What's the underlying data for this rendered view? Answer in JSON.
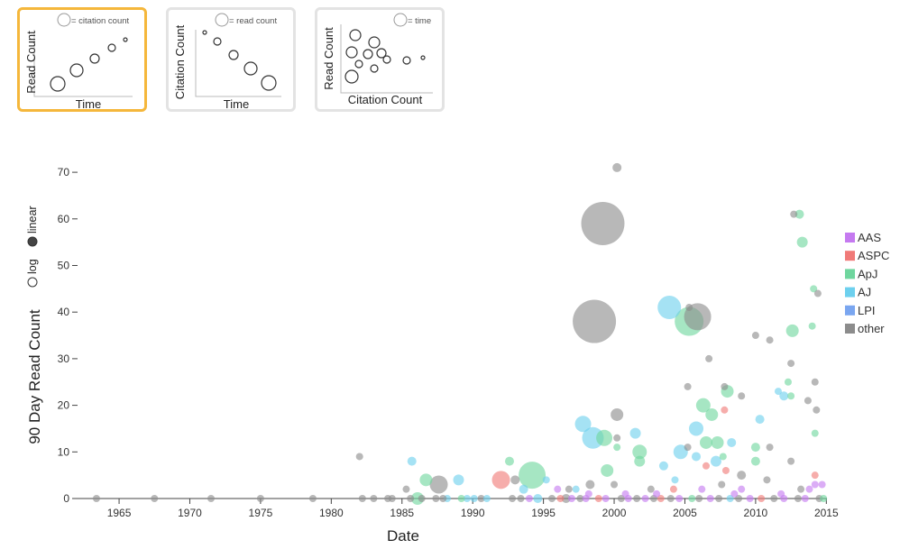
{
  "thumbnails": [
    {
      "xlabel": "Time",
      "ylabel": "Read Count",
      "size_legend": "= citation count",
      "selected": true
    },
    {
      "xlabel": "Time",
      "ylabel": "Citation Count",
      "size_legend": "= read count",
      "selected": false
    },
    {
      "xlabel": "Citation Count",
      "ylabel": "Read Count",
      "size_legend": "= time",
      "selected": false
    }
  ],
  "scale_toggle": {
    "log_label": "log",
    "linear_label": "linear",
    "selected": "linear"
  },
  "legend": [
    {
      "label": "AAS",
      "color": "#c57af0"
    },
    {
      "label": "ASPC",
      "color": "#f07a78"
    },
    {
      "label": "ApJ",
      "color": "#6fd69e"
    },
    {
      "label": "AJ",
      "color": "#6dd0ee"
    },
    {
      "label": "LPI",
      "color": "#7aa6f0"
    },
    {
      "label": "other",
      "color": "#8c8c8c"
    }
  ],
  "chart_data": {
    "type": "scatter",
    "title": "",
    "xlabel": "Date",
    "ylabel": "90 Day Read Count",
    "xlim": [
      1962,
      2016
    ],
    "ylim": [
      0,
      72
    ],
    "xticks": [
      1965,
      1970,
      1975,
      1980,
      1985,
      1990,
      1995,
      2000,
      2005,
      2010,
      2015
    ],
    "yticks": [
      0,
      10,
      20,
      30,
      40,
      50,
      60,
      70
    ],
    "size_encoding": "citation count",
    "points": [
      {
        "x": 1963.4,
        "y": 0,
        "r": 4,
        "s": "other"
      },
      {
        "x": 1967.5,
        "y": 0,
        "r": 4,
        "s": "other"
      },
      {
        "x": 1971.5,
        "y": 0,
        "r": 4,
        "s": "other"
      },
      {
        "x": 1975,
        "y": 0,
        "r": 4,
        "s": "other"
      },
      {
        "x": 1978.7,
        "y": 0,
        "r": 4,
        "s": "other"
      },
      {
        "x": 1982,
        "y": 9,
        "r": 4,
        "s": "other"
      },
      {
        "x": 1982.2,
        "y": 0,
        "r": 4,
        "s": "other"
      },
      {
        "x": 1983,
        "y": 0,
        "r": 4,
        "s": "other"
      },
      {
        "x": 1984.3,
        "y": 0,
        "r": 4,
        "s": "other"
      },
      {
        "x": 1985.3,
        "y": 2,
        "r": 4,
        "s": "other"
      },
      {
        "x": 1985.6,
        "y": 0,
        "r": 4,
        "s": "other"
      },
      {
        "x": 1985.7,
        "y": 8,
        "r": 5,
        "s": "AJ"
      },
      {
        "x": 1986.1,
        "y": 0,
        "r": 7,
        "s": "ApJ"
      },
      {
        "x": 1986.7,
        "y": 4,
        "r": 7,
        "s": "ApJ"
      },
      {
        "x": 1987.4,
        "y": 0,
        "r": 4,
        "s": "other"
      },
      {
        "x": 1987.6,
        "y": 3,
        "r": 10,
        "s": "other"
      },
      {
        "x": 1988.2,
        "y": 0,
        "r": 4,
        "s": "AJ"
      },
      {
        "x": 1989,
        "y": 4,
        "r": 6,
        "s": "AJ"
      },
      {
        "x": 1989.6,
        "y": 0,
        "r": 4,
        "s": "AJ"
      },
      {
        "x": 1990.6,
        "y": 0,
        "r": 4,
        "s": "other"
      },
      {
        "x": 1992,
        "y": 4,
        "r": 10,
        "s": "ASPC"
      },
      {
        "x": 1992.6,
        "y": 8,
        "r": 5,
        "s": "ApJ"
      },
      {
        "x": 1993,
        "y": 4,
        "r": 5,
        "s": "other"
      },
      {
        "x": 1993.6,
        "y": 2,
        "r": 5,
        "s": "AJ"
      },
      {
        "x": 1994.2,
        "y": 5,
        "r": 15,
        "s": "ApJ"
      },
      {
        "x": 1994.6,
        "y": 0,
        "r": 5,
        "s": "AJ"
      },
      {
        "x": 1995.2,
        "y": 4,
        "r": 4,
        "s": "AJ"
      },
      {
        "x": 1996,
        "y": 2,
        "r": 4,
        "s": "AAS"
      },
      {
        "x": 1996.6,
        "y": 0,
        "r": 5,
        "s": "other"
      },
      {
        "x": 1997.3,
        "y": 2,
        "r": 4,
        "s": "AJ"
      },
      {
        "x": 1997.8,
        "y": 16,
        "r": 9,
        "s": "AJ"
      },
      {
        "x": 1998.3,
        "y": 3,
        "r": 5,
        "s": "other"
      },
      {
        "x": 1998.6,
        "y": 38,
        "r": 24,
        "s": "other"
      },
      {
        "x": 1998.5,
        "y": 13,
        "r": 12,
        "s": "AJ"
      },
      {
        "x": 1999.3,
        "y": 13,
        "r": 9,
        "s": "ApJ"
      },
      {
        "x": 1999.2,
        "y": 59,
        "r": 24,
        "s": "other"
      },
      {
        "x": 1999.5,
        "y": 6,
        "r": 7,
        "s": "ApJ"
      },
      {
        "x": 2000,
        "y": 3,
        "r": 4,
        "s": "other"
      },
      {
        "x": 2000.2,
        "y": 71,
        "r": 5,
        "s": "other"
      },
      {
        "x": 2000.2,
        "y": 18,
        "r": 7,
        "s": "other"
      },
      {
        "x": 2000.2,
        "y": 13,
        "r": 4,
        "s": "other"
      },
      {
        "x": 2000.2,
        "y": 11,
        "r": 4,
        "s": "ApJ"
      },
      {
        "x": 2001.5,
        "y": 14,
        "r": 6,
        "s": "AJ"
      },
      {
        "x": 2001.8,
        "y": 10,
        "r": 8,
        "s": "ApJ"
      },
      {
        "x": 2001.8,
        "y": 8,
        "r": 6,
        "s": "ApJ"
      },
      {
        "x": 2003.5,
        "y": 7,
        "r": 5,
        "s": "AJ"
      },
      {
        "x": 2003.9,
        "y": 41,
        "r": 13,
        "s": "AJ"
      },
      {
        "x": 2004.3,
        "y": 4,
        "r": 4,
        "s": "AJ"
      },
      {
        "x": 2004.7,
        "y": 10,
        "r": 8,
        "s": "AJ"
      },
      {
        "x": 2005.2,
        "y": 11,
        "r": 4,
        "s": "other"
      },
      {
        "x": 2005.2,
        "y": 24,
        "r": 4,
        "s": "other"
      },
      {
        "x": 2005.3,
        "y": 38,
        "r": 16,
        "s": "ApJ"
      },
      {
        "x": 2005.3,
        "y": 41,
        "r": 4,
        "s": "other"
      },
      {
        "x": 2005.9,
        "y": 39,
        "r": 15,
        "s": "other"
      },
      {
        "x": 2005.8,
        "y": 15,
        "r": 8,
        "s": "AJ"
      },
      {
        "x": 2005.8,
        "y": 9,
        "r": 5,
        "s": "AJ"
      },
      {
        "x": 2006.3,
        "y": 20,
        "r": 8,
        "s": "ApJ"
      },
      {
        "x": 2006.5,
        "y": 12,
        "r": 7,
        "s": "ApJ"
      },
      {
        "x": 2006.5,
        "y": 7,
        "r": 4,
        "s": "ASPC"
      },
      {
        "x": 2006.7,
        "y": 30,
        "r": 4,
        "s": "other"
      },
      {
        "x": 2006.9,
        "y": 18,
        "r": 7,
        "s": "ApJ"
      },
      {
        "x": 2007.2,
        "y": 8,
        "r": 6,
        "s": "AJ"
      },
      {
        "x": 2007.3,
        "y": 12,
        "r": 7,
        "s": "ApJ"
      },
      {
        "x": 2007.7,
        "y": 9,
        "r": 4,
        "s": "ApJ"
      },
      {
        "x": 2007.8,
        "y": 24,
        "r": 4,
        "s": "other"
      },
      {
        "x": 2007.8,
        "y": 19,
        "r": 4,
        "s": "ASPC"
      },
      {
        "x": 2008,
        "y": 23,
        "r": 7,
        "s": "ApJ"
      },
      {
        "x": 2007.9,
        "y": 6,
        "r": 4,
        "s": "ASPC"
      },
      {
        "x": 2008.3,
        "y": 12,
        "r": 5,
        "s": "AJ"
      },
      {
        "x": 2009,
        "y": 22,
        "r": 4,
        "s": "other"
      },
      {
        "x": 2009,
        "y": 5,
        "r": 5,
        "s": "other"
      },
      {
        "x": 2009,
        "y": 2,
        "r": 4,
        "s": "AAS"
      },
      {
        "x": 2010,
        "y": 35,
        "r": 4,
        "s": "other"
      },
      {
        "x": 2010,
        "y": 11,
        "r": 5,
        "s": "ApJ"
      },
      {
        "x": 2010,
        "y": 8,
        "r": 5,
        "s": "ApJ"
      },
      {
        "x": 2010.3,
        "y": 17,
        "r": 5,
        "s": "AJ"
      },
      {
        "x": 2010.8,
        "y": 4,
        "r": 4,
        "s": "other"
      },
      {
        "x": 2011,
        "y": 11,
        "r": 4,
        "s": "other"
      },
      {
        "x": 2011,
        "y": 34,
        "r": 4,
        "s": "other"
      },
      {
        "x": 2011.6,
        "y": 23,
        "r": 4,
        "s": "AJ"
      },
      {
        "x": 2012,
        "y": 22,
        "r": 5,
        "s": "AJ"
      },
      {
        "x": 2012.3,
        "y": 25,
        "r": 4,
        "s": "ApJ"
      },
      {
        "x": 2012.5,
        "y": 29,
        "r": 4,
        "s": "other"
      },
      {
        "x": 2012.5,
        "y": 22,
        "r": 4,
        "s": "ApJ"
      },
      {
        "x": 2012.5,
        "y": 8,
        "r": 4,
        "s": "other"
      },
      {
        "x": 2012.6,
        "y": 36,
        "r": 7,
        "s": "ApJ"
      },
      {
        "x": 2012.7,
        "y": 61,
        "r": 4,
        "s": "other"
      },
      {
        "x": 2013.1,
        "y": 61,
        "r": 5,
        "s": "ApJ"
      },
      {
        "x": 2013.3,
        "y": 55,
        "r": 6,
        "s": "ApJ"
      },
      {
        "x": 2013.7,
        "y": 21,
        "r": 4,
        "s": "other"
      },
      {
        "x": 2014.1,
        "y": 45,
        "r": 4,
        "s": "ApJ"
      },
      {
        "x": 2014,
        "y": 37,
        "r": 4,
        "s": "ApJ"
      },
      {
        "x": 2014.2,
        "y": 25,
        "r": 4,
        "s": "other"
      },
      {
        "x": 2014.4,
        "y": 44,
        "r": 4,
        "s": "other"
      },
      {
        "x": 2014.3,
        "y": 19,
        "r": 4,
        "s": "other"
      },
      {
        "x": 2014.2,
        "y": 14,
        "r": 4,
        "s": "ApJ"
      },
      {
        "x": 2014.2,
        "y": 5,
        "r": 4,
        "s": "ASPC"
      },
      {
        "x": 2014.2,
        "y": 3,
        "r": 4,
        "s": "AAS"
      },
      {
        "x": 2013.8,
        "y": 2,
        "r": 4,
        "s": "AAS"
      },
      {
        "x": 2014.7,
        "y": 3,
        "r": 4,
        "s": "AAS"
      },
      {
        "x": 1984,
        "y": 0,
        "r": 4,
        "s": "other"
      },
      {
        "x": 1986.4,
        "y": 0,
        "r": 4,
        "s": "other"
      },
      {
        "x": 1987.9,
        "y": 0,
        "r": 4,
        "s": "other"
      },
      {
        "x": 1989.2,
        "y": 0,
        "r": 4,
        "s": "ApJ"
      },
      {
        "x": 1990.1,
        "y": 0,
        "r": 4,
        "s": "AJ"
      },
      {
        "x": 1991,
        "y": 0,
        "r": 4,
        "s": "AJ"
      },
      {
        "x": 1992.8,
        "y": 0,
        "r": 4,
        "s": "other"
      },
      {
        "x": 1993.4,
        "y": 0,
        "r": 4,
        "s": "other"
      },
      {
        "x": 1994,
        "y": 0,
        "r": 4,
        "s": "AAS"
      },
      {
        "x": 1995.6,
        "y": 0,
        "r": 4,
        "s": "other"
      },
      {
        "x": 1996.2,
        "y": 0,
        "r": 4,
        "s": "ASPC"
      },
      {
        "x": 1997,
        "y": 0,
        "r": 4,
        "s": "AAS"
      },
      {
        "x": 1997.6,
        "y": 0,
        "r": 4,
        "s": "other"
      },
      {
        "x": 1998,
        "y": 0,
        "r": 4,
        "s": "AAS"
      },
      {
        "x": 1998.9,
        "y": 0,
        "r": 4,
        "s": "ASPC"
      },
      {
        "x": 1999.4,
        "y": 0,
        "r": 4,
        "s": "AAS"
      },
      {
        "x": 2000.5,
        "y": 0,
        "r": 4,
        "s": "other"
      },
      {
        "x": 2001,
        "y": 0,
        "r": 4,
        "s": "AAS"
      },
      {
        "x": 2001.6,
        "y": 0,
        "r": 4,
        "s": "other"
      },
      {
        "x": 2002.2,
        "y": 0,
        "r": 4,
        "s": "AAS"
      },
      {
        "x": 2002.8,
        "y": 0,
        "r": 4,
        "s": "other"
      },
      {
        "x": 2003.3,
        "y": 0,
        "r": 4,
        "s": "ASPC"
      },
      {
        "x": 2004,
        "y": 0,
        "r": 4,
        "s": "other"
      },
      {
        "x": 2004.6,
        "y": 0,
        "r": 4,
        "s": "AAS"
      },
      {
        "x": 2005.5,
        "y": 0,
        "r": 4,
        "s": "ApJ"
      },
      {
        "x": 2006,
        "y": 0,
        "r": 4,
        "s": "other"
      },
      {
        "x": 2006.8,
        "y": 0,
        "r": 4,
        "s": "AAS"
      },
      {
        "x": 2007.4,
        "y": 0,
        "r": 4,
        "s": "other"
      },
      {
        "x": 2008.2,
        "y": 0,
        "r": 4,
        "s": "AJ"
      },
      {
        "x": 2008.8,
        "y": 0,
        "r": 4,
        "s": "other"
      },
      {
        "x": 2009.6,
        "y": 0,
        "r": 4,
        "s": "AAS"
      },
      {
        "x": 2010.4,
        "y": 0,
        "r": 4,
        "s": "ASPC"
      },
      {
        "x": 2011.3,
        "y": 0,
        "r": 4,
        "s": "other"
      },
      {
        "x": 2012,
        "y": 0,
        "r": 4,
        "s": "AAS"
      },
      {
        "x": 2013,
        "y": 0,
        "r": 4,
        "s": "other"
      },
      {
        "x": 2013.5,
        "y": 0,
        "r": 4,
        "s": "AAS"
      },
      {
        "x": 2014.5,
        "y": 0,
        "r": 4,
        "s": "other"
      },
      {
        "x": 1996.8,
        "y": 2,
        "r": 4,
        "s": "other"
      },
      {
        "x": 1998.2,
        "y": 1,
        "r": 4,
        "s": "AAS"
      },
      {
        "x": 2000.8,
        "y": 1,
        "r": 4,
        "s": "AAS"
      },
      {
        "x": 2002.6,
        "y": 2,
        "r": 4,
        "s": "other"
      },
      {
        "x": 2003,
        "y": 1,
        "r": 4,
        "s": "AAS"
      },
      {
        "x": 2004.2,
        "y": 2,
        "r": 4,
        "s": "ASPC"
      },
      {
        "x": 2006.2,
        "y": 2,
        "r": 4,
        "s": "AAS"
      },
      {
        "x": 2007.6,
        "y": 3,
        "r": 4,
        "s": "other"
      },
      {
        "x": 2008.5,
        "y": 1,
        "r": 4,
        "s": "AAS"
      },
      {
        "x": 2011.8,
        "y": 1,
        "r": 4,
        "s": "AAS"
      },
      {
        "x": 2013.2,
        "y": 2,
        "r": 4,
        "s": "other"
      },
      {
        "x": 2014.8,
        "y": 0,
        "r": 4,
        "s": "ApJ"
      }
    ]
  }
}
